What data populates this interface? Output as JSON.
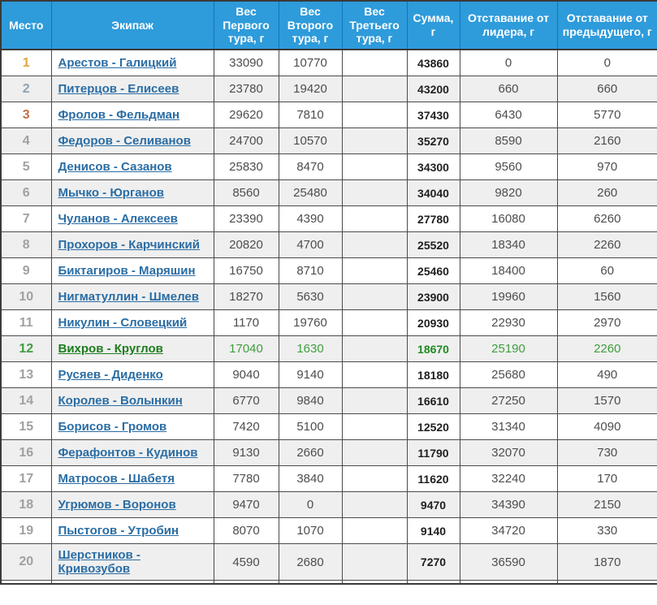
{
  "colors": {
    "header_bg": "#2e9bdb",
    "header_border": "#1374bc",
    "header_text": "#ffffff",
    "link_blue": "#2a6da4",
    "highlight_green": "#1e7d1e",
    "highlight_green_values": "#3f9e3f",
    "place_gold": "#dfa43f",
    "place_silver": "#8ea2b4",
    "place_bronze": "#be7145",
    "place_gray": "#a1a1a1",
    "row_alt_bg": "#efefef"
  },
  "table": {
    "columns": [
      {
        "key": "place",
        "label": "Место"
      },
      {
        "key": "crew",
        "label": "Экипаж"
      },
      {
        "key": "w1",
        "label": "Вес Первого тура, г"
      },
      {
        "key": "w2",
        "label": "Вес Второго тура, г"
      },
      {
        "key": "w3",
        "label": "Вес Третьего тура, г"
      },
      {
        "key": "sum",
        "label": "Сумма, г"
      },
      {
        "key": "gap_leader",
        "label": "Отставание от лидера, г"
      },
      {
        "key": "gap_prev",
        "label": "Отставание от предыдущего, г"
      }
    ],
    "rows": [
      {
        "place": "1",
        "crew": "Арестов - Галицкий",
        "w1": "33090",
        "w2": "10770",
        "w3": "",
        "sum": "43860",
        "gap_leader": "0",
        "gap_prev": "0",
        "medal": "gold",
        "highlight": false
      },
      {
        "place": "2",
        "crew": "Питерцов - Елисеев",
        "w1": "23780",
        "w2": "19420",
        "w3": "",
        "sum": "43200",
        "gap_leader": "660",
        "gap_prev": "660",
        "medal": "silver",
        "highlight": false
      },
      {
        "place": "3",
        "crew": "Фролов - Фельдман",
        "w1": "29620",
        "w2": "7810",
        "w3": "",
        "sum": "37430",
        "gap_leader": "6430",
        "gap_prev": "5770",
        "medal": "bronze",
        "highlight": false
      },
      {
        "place": "4",
        "crew": "Федоров - Селиванов",
        "w1": "24700",
        "w2": "10570",
        "w3": "",
        "sum": "35270",
        "gap_leader": "8590",
        "gap_prev": "2160",
        "medal": "none",
        "highlight": false
      },
      {
        "place": "5",
        "crew": "Денисов - Сазанов",
        "w1": "25830",
        "w2": "8470",
        "w3": "",
        "sum": "34300",
        "gap_leader": "9560",
        "gap_prev": "970",
        "medal": "none",
        "highlight": false
      },
      {
        "place": "6",
        "crew": "Мычко - Юрганов",
        "w1": "8560",
        "w2": "25480",
        "w3": "",
        "sum": "34040",
        "gap_leader": "9820",
        "gap_prev": "260",
        "medal": "none",
        "highlight": false
      },
      {
        "place": "7",
        "crew": "Чуланов - Алексеев",
        "w1": "23390",
        "w2": "4390",
        "w3": "",
        "sum": "27780",
        "gap_leader": "16080",
        "gap_prev": "6260",
        "medal": "none",
        "highlight": false
      },
      {
        "place": "8",
        "crew": "Прохоров - Карчинский",
        "w1": "20820",
        "w2": "4700",
        "w3": "",
        "sum": "25520",
        "gap_leader": "18340",
        "gap_prev": "2260",
        "medal": "none",
        "highlight": false
      },
      {
        "place": "9",
        "crew": "Биктагиров - Маряшин",
        "w1": "16750",
        "w2": "8710",
        "w3": "",
        "sum": "25460",
        "gap_leader": "18400",
        "gap_prev": "60",
        "medal": "none",
        "highlight": false
      },
      {
        "place": "10",
        "crew": "Нигматуллин - Шмелев",
        "w1": "18270",
        "w2": "5630",
        "w3": "",
        "sum": "23900",
        "gap_leader": "19960",
        "gap_prev": "1560",
        "medal": "none",
        "highlight": false
      },
      {
        "place": "11",
        "crew": "Никулин - Словецкий",
        "w1": "1170",
        "w2": "19760",
        "w3": "",
        "sum": "20930",
        "gap_leader": "22930",
        "gap_prev": "2970",
        "medal": "none",
        "highlight": false
      },
      {
        "place": "12",
        "crew": "Вихров - Круглов",
        "w1": "17040",
        "w2": "1630",
        "w3": "",
        "sum": "18670",
        "gap_leader": "25190",
        "gap_prev": "2260",
        "medal": "none",
        "highlight": true
      },
      {
        "place": "13",
        "crew": "Русяев - Диденко",
        "w1": "9040",
        "w2": "9140",
        "w3": "",
        "sum": "18180",
        "gap_leader": "25680",
        "gap_prev": "490",
        "medal": "none",
        "highlight": false
      },
      {
        "place": "14",
        "crew": "Королев - Волынкин",
        "w1": "6770",
        "w2": "9840",
        "w3": "",
        "sum": "16610",
        "gap_leader": "27250",
        "gap_prev": "1570",
        "medal": "none",
        "highlight": false
      },
      {
        "place": "15",
        "crew": "Борисов - Громов",
        "w1": "7420",
        "w2": "5100",
        "w3": "",
        "sum": "12520",
        "gap_leader": "31340",
        "gap_prev": "4090",
        "medal": "none",
        "highlight": false
      },
      {
        "place": "16",
        "crew": "Ферафонтов - Кудинов",
        "w1": "9130",
        "w2": "2660",
        "w3": "",
        "sum": "11790",
        "gap_leader": "32070",
        "gap_prev": "730",
        "medal": "none",
        "highlight": false
      },
      {
        "place": "17",
        "crew": "Матросов - Шабетя",
        "w1": "7780",
        "w2": "3840",
        "w3": "",
        "sum": "11620",
        "gap_leader": "32240",
        "gap_prev": "170",
        "medal": "none",
        "highlight": false
      },
      {
        "place": "18",
        "crew": "Угрюмов - Воронов",
        "w1": "9470",
        "w2": "0",
        "w3": "",
        "sum": "9470",
        "gap_leader": "34390",
        "gap_prev": "2150",
        "medal": "none",
        "highlight": false
      },
      {
        "place": "19",
        "crew": "Пыстогов - Утробин",
        "w1": "8070",
        "w2": "1070",
        "w3": "",
        "sum": "9140",
        "gap_leader": "34720",
        "gap_prev": "330",
        "medal": "none",
        "highlight": false
      },
      {
        "place": "20",
        "crew": "Шерстников - Кривозубов",
        "w1": "4590",
        "w2": "2680",
        "w3": "",
        "sum": "7270",
        "gap_leader": "36590",
        "gap_prev": "1870",
        "medal": "none",
        "highlight": false
      }
    ]
  }
}
